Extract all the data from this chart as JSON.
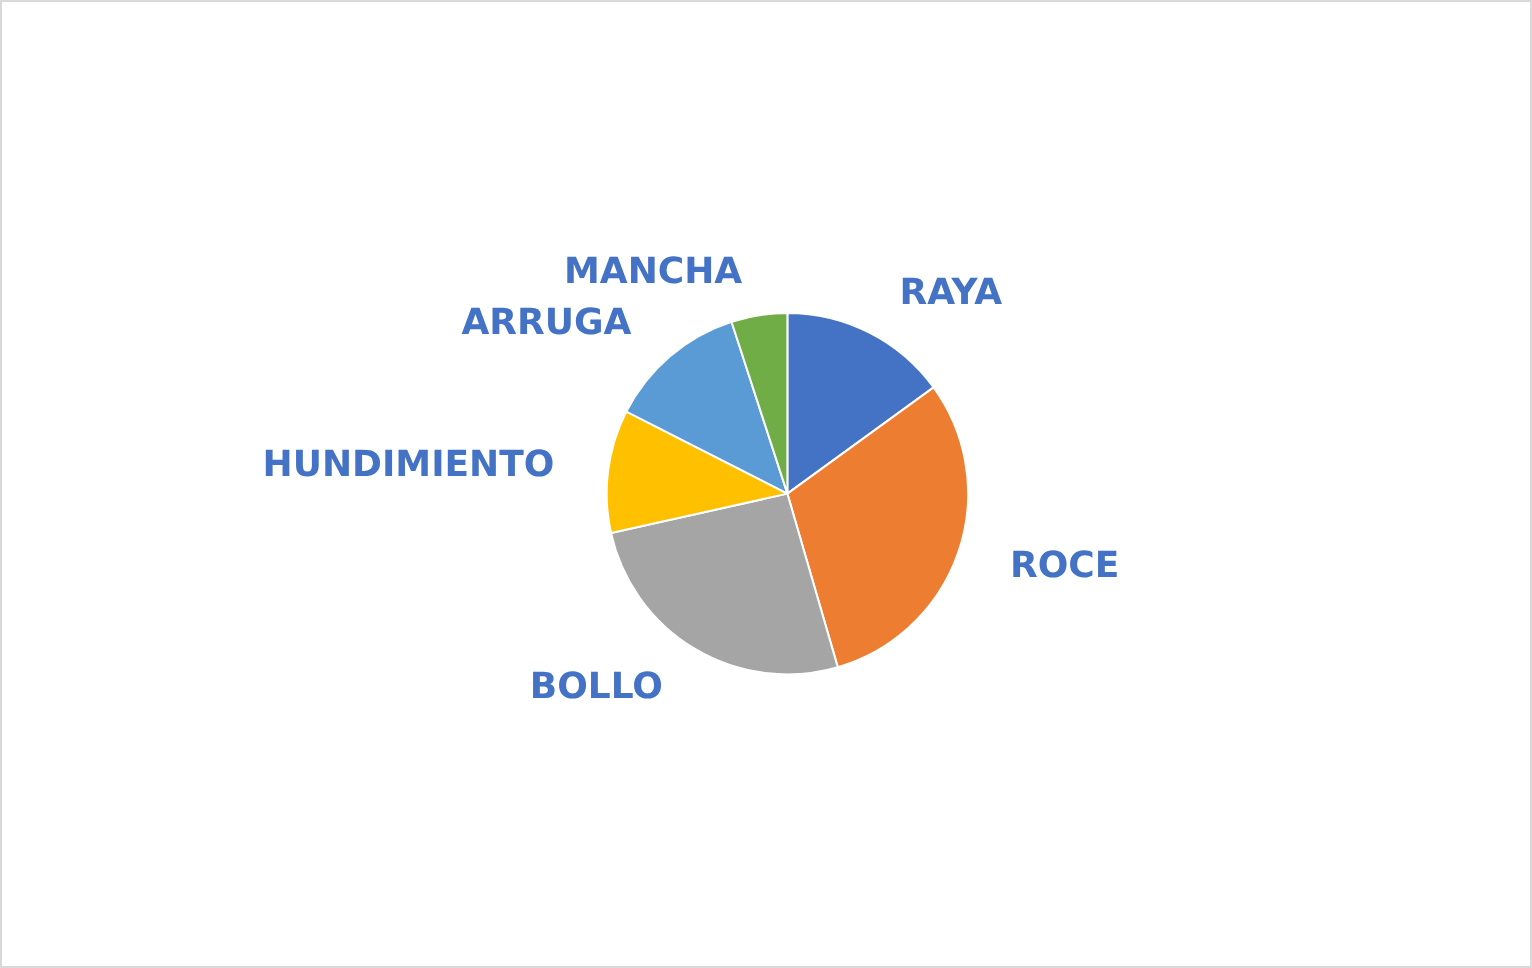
{
  "chart_data": {
    "type": "pie",
    "categories": [
      "RAYA",
      "ROCE",
      "BOLLO",
      "HUNDIMIENTO",
      "ARRUGA",
      "MANCHA"
    ],
    "values": [
      15,
      30.5,
      26,
      11,
      12.5,
      5
    ],
    "colors": [
      "#4472c4",
      "#ed7d31",
      "#a5a5a5",
      "#ffc000",
      "#5b9bd5",
      "#70ad47"
    ],
    "legend": false
  }
}
